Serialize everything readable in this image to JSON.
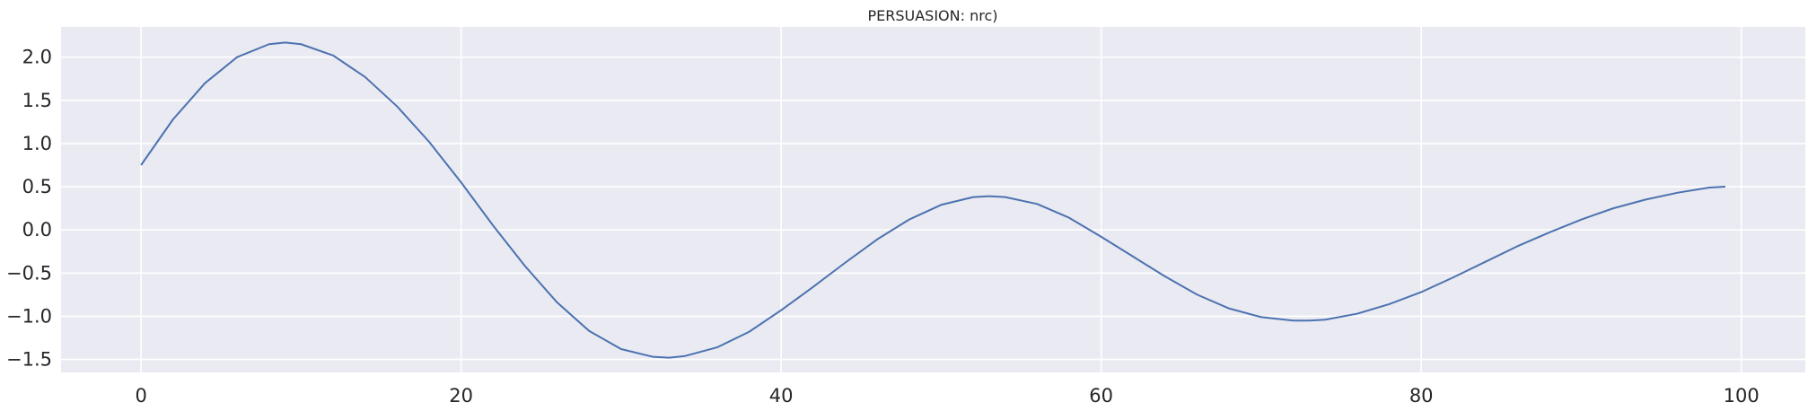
{
  "chart_data": {
    "type": "line",
    "title": "PERSUASION: nrc)",
    "xlabel": "",
    "ylabel": "",
    "xlim": [
      -5,
      104
    ],
    "ylim": [
      -1.65,
      2.35
    ],
    "xticks": [
      0,
      20,
      40,
      60,
      80,
      100
    ],
    "yticks": [
      -1.5,
      -1.0,
      -0.5,
      0.0,
      0.5,
      1.0,
      1.5,
      2.0
    ],
    "ytick_labels": [
      "−1.5",
      "−1.0",
      "−0.5",
      "0.0",
      "0.5",
      "1.0",
      "1.5",
      "2.0"
    ],
    "xtick_labels": [
      "0",
      "20",
      "40",
      "60",
      "80",
      "100"
    ],
    "grid": true,
    "background": "#eaeaf2",
    "grid_color": "#ffffff",
    "line_color": "#4c72b0",
    "series": [
      {
        "x": [
          0,
          2,
          4,
          6,
          8,
          9,
          10,
          12,
          14,
          16,
          18,
          20,
          22,
          24,
          26,
          28,
          30,
          32,
          33,
          34,
          36,
          38,
          40,
          42,
          44,
          46,
          48,
          50,
          52,
          53,
          54,
          56,
          58,
          60,
          62,
          64,
          66,
          68,
          70,
          72,
          73,
          74,
          76,
          78,
          80,
          82,
          84,
          86,
          88,
          90,
          92,
          94,
          96,
          98,
          99
        ],
        "y": [
          0.75,
          1.28,
          1.7,
          2.0,
          2.15,
          2.17,
          2.15,
          2.02,
          1.77,
          1.43,
          1.02,
          0.55,
          0.05,
          -0.42,
          -0.84,
          -1.17,
          -1.38,
          -1.47,
          -1.48,
          -1.46,
          -1.36,
          -1.18,
          -0.93,
          -0.66,
          -0.38,
          -0.11,
          0.12,
          0.29,
          0.38,
          0.39,
          0.38,
          0.3,
          0.14,
          -0.08,
          -0.31,
          -0.54,
          -0.75,
          -0.91,
          -1.01,
          -1.05,
          -1.05,
          -1.04,
          -0.97,
          -0.86,
          -0.72,
          -0.55,
          -0.37,
          -0.19,
          -0.03,
          0.12,
          0.25,
          0.35,
          0.43,
          0.49,
          0.5
        ]
      }
    ]
  }
}
